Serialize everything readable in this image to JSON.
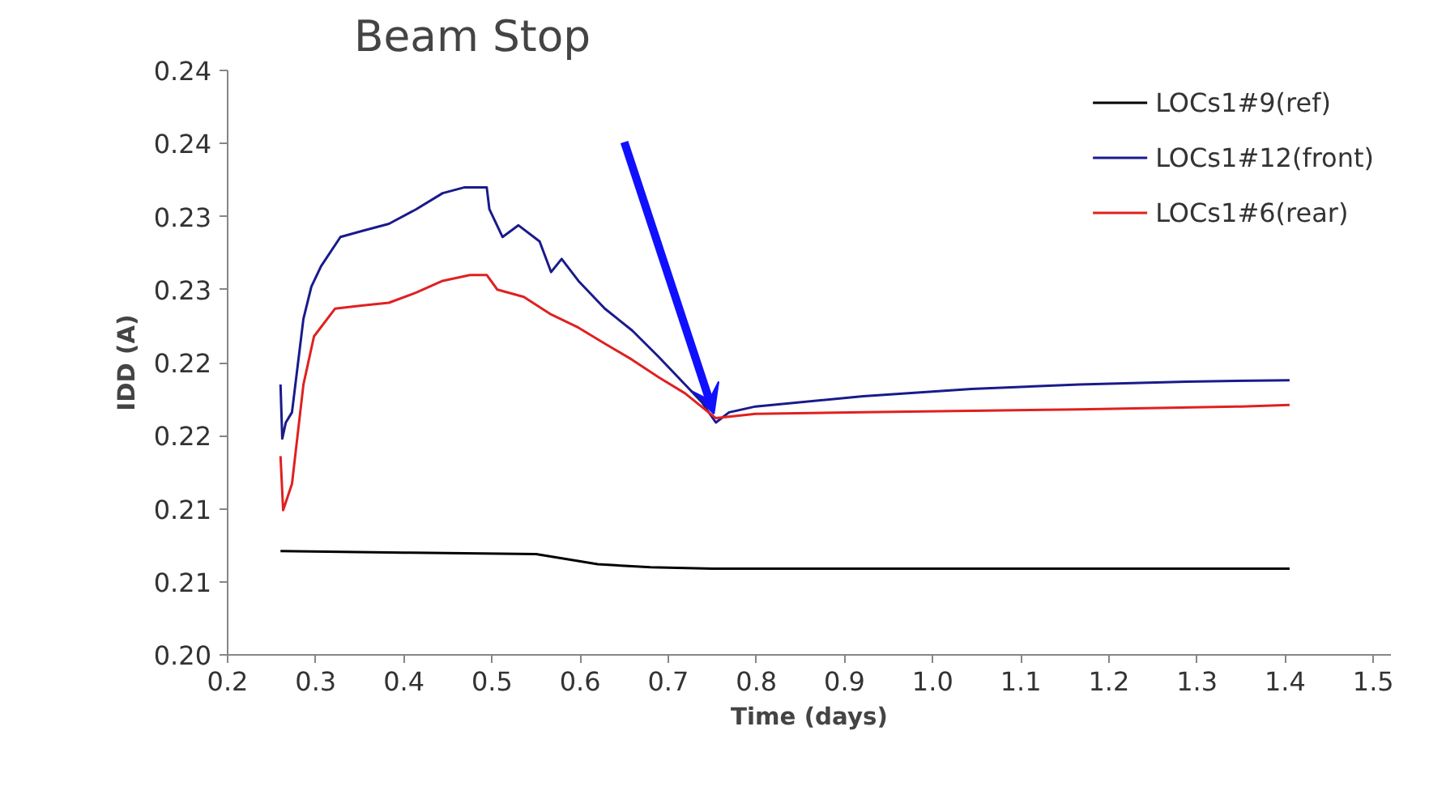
{
  "chart_data": {
    "type": "line",
    "xlabel": "Time (days)",
    "ylabel": "IDD (A)",
    "xlim": [
      0.2,
      1.52
    ],
    "ylim": [
      0.2,
      0.24
    ],
    "xticks": [
      0.2,
      0.3,
      0.4,
      0.5,
      0.6,
      0.7,
      0.8,
      0.9,
      {
        "value": 1,
        "label": "1.0"
      },
      1.1,
      1.2,
      1.3,
      1.4,
      1.5
    ],
    "yticks": [
      {
        "value": 0.2,
        "label": "0.20"
      },
      {
        "value": 0.205,
        "label": "0.21"
      },
      {
        "value": 0.21,
        "label": "0.21"
      },
      {
        "value": 0.215,
        "label": "0.22"
      },
      {
        "value": 0.22,
        "label": "0.22"
      },
      {
        "value": 0.225,
        "label": "0.23"
      },
      {
        "value": 0.23,
        "label": "0.23"
      },
      {
        "value": 0.235,
        "label": "0.24"
      },
      {
        "value": 0.24,
        "label": "0.24"
      }
    ],
    "grid": false,
    "legend": "top right",
    "marker": "none",
    "line_style": "solid",
    "annotations": [
      "Beam Stop"
    ],
    "series": [
      {
        "name": "LOCs1#9(ref)",
        "color": "#000000",
        "x": [
          0.26,
          0.4,
          0.55,
          0.62,
          0.68,
          0.75,
          0.9,
          1.1,
          1.3,
          1.405
        ],
        "values": [
          0.2071,
          0.207,
          0.2069,
          0.2062,
          0.206,
          0.2059,
          0.2059,
          0.2059,
          0.2059,
          0.2059
        ]
      },
      {
        "name": "LOCs1#12(front)",
        "color": "#1a1a8c",
        "x": [
          0.26,
          0.262,
          0.266,
          0.273,
          0.286,
          0.295,
          0.306,
          0.328,
          0.352,
          0.383,
          0.414,
          0.444,
          0.469,
          0.494,
          0.497,
          0.512,
          0.53,
          0.554,
          0.567,
          0.579,
          0.598,
          0.628,
          0.659,
          0.689,
          0.719,
          0.738,
          0.754,
          0.769,
          0.799,
          0.921,
          1.044,
          1.166,
          1.288,
          1.405
        ],
        "values": [
          0.2185,
          0.2148,
          0.2159,
          0.2166,
          0.223,
          0.2252,
          0.2266,
          0.2286,
          0.229,
          0.2295,
          0.2305,
          0.2316,
          0.232,
          0.232,
          0.2305,
          0.2286,
          0.2294,
          0.2283,
          0.2262,
          0.2271,
          0.2256,
          0.2237,
          0.2222,
          0.2204,
          0.2185,
          0.2173,
          0.2159,
          0.2166,
          0.217,
          0.2177,
          0.2182,
          0.2185,
          0.2187,
          0.2188
        ]
      },
      {
        "name": "LOCs1#6(rear)",
        "color": "#e02020",
        "x": [
          0.26,
          0.263,
          0.273,
          0.286,
          0.298,
          0.322,
          0.352,
          0.383,
          0.414,
          0.444,
          0.475,
          0.494,
          0.506,
          0.536,
          0.567,
          0.598,
          0.628,
          0.659,
          0.689,
          0.719,
          0.754,
          0.799,
          0.921,
          1.166,
          1.35,
          1.405
        ],
        "values": [
          0.2136,
          0.2099,
          0.2117,
          0.2185,
          0.2218,
          0.2237,
          0.2239,
          0.2241,
          0.2248,
          0.2256,
          0.226,
          0.226,
          0.225,
          0.2245,
          0.2233,
          0.2224,
          0.2213,
          0.2202,
          0.219,
          0.2179,
          0.2162,
          0.2165,
          0.2166,
          0.2168,
          0.217,
          0.2171
        ]
      }
    ]
  }
}
